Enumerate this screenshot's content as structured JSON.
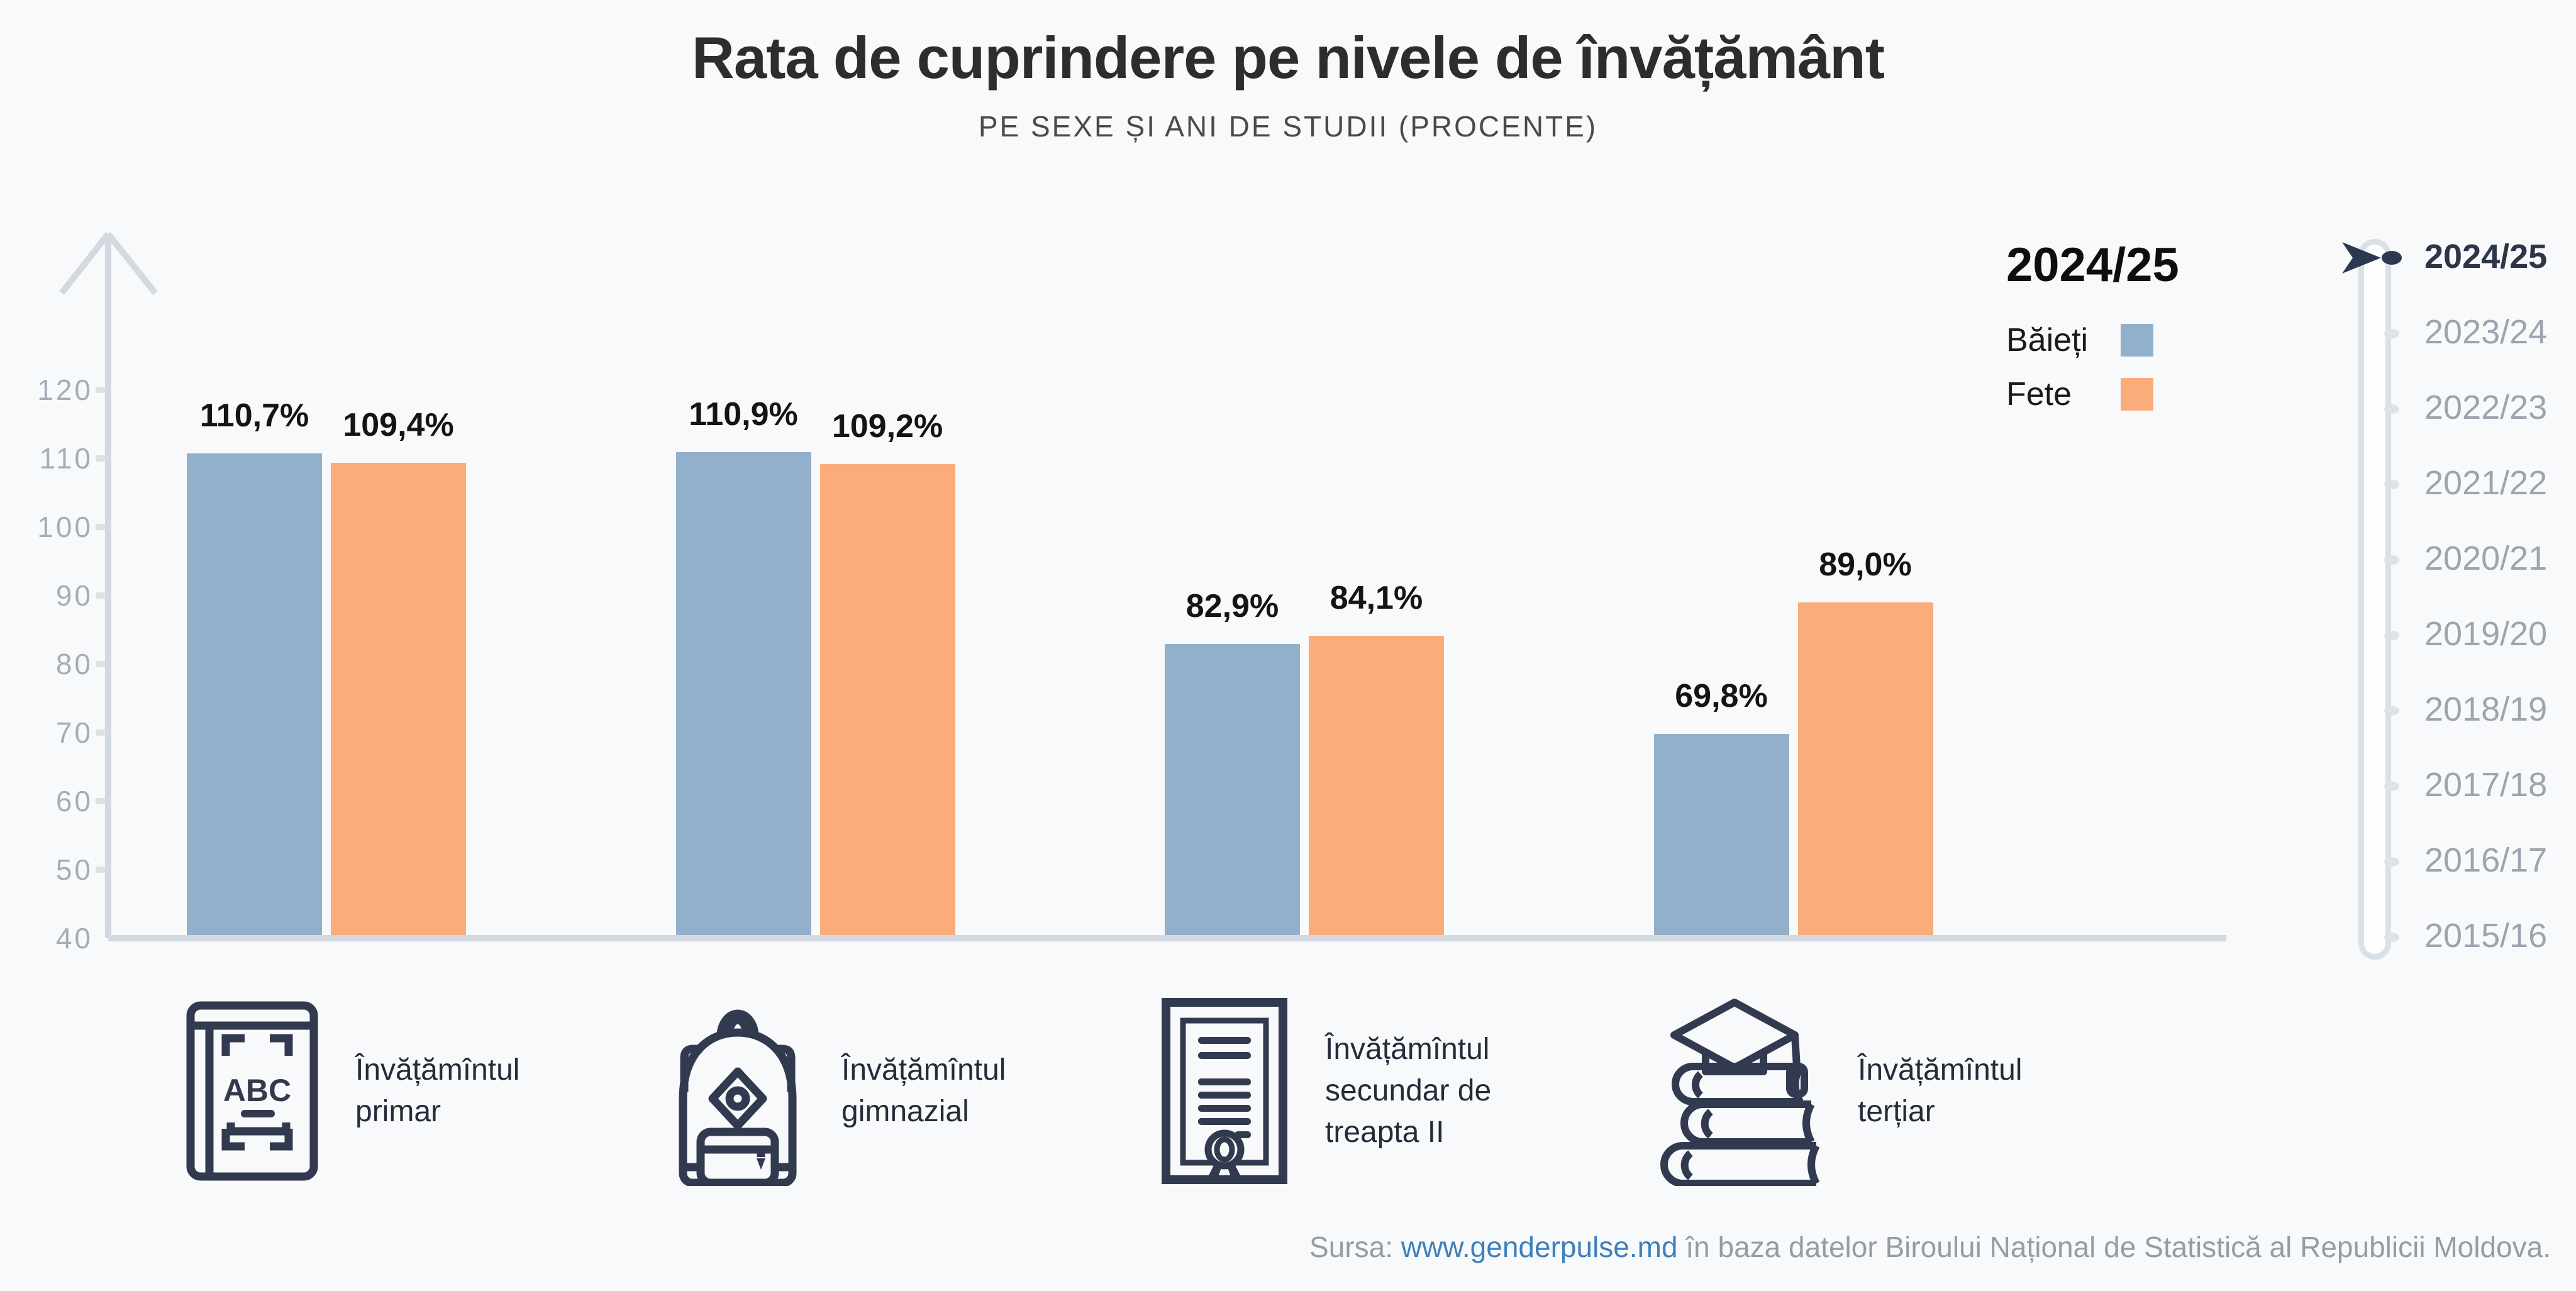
{
  "title": "Rata de cuprindere pe nivele de învățământ",
  "subtitle": "PE SEXE ȘI ANI DE STUDII (PROCENTE)",
  "legend": {
    "year": "2024/25",
    "items": [
      {
        "label": "Băieți",
        "color": "#93B0CB"
      },
      {
        "label": "Fete",
        "color": "#FBAC7B"
      }
    ]
  },
  "timeline": {
    "selected": "2024/25",
    "years": [
      "2024/25",
      "2023/24",
      "2022/23",
      "2021/22",
      "2020/21",
      "2019/20",
      "2018/19",
      "2017/18",
      "2016/17",
      "2015/16"
    ]
  },
  "chart_data": {
    "type": "bar",
    "categories": [
      "Învățămîntul\nprimar",
      "Învățămîntul\ngimnazial",
      "Învățămîntul\nsecundar de\ntreapta II",
      "Învățămîntul\nterțiar"
    ],
    "category_icons": [
      "abc-book-icon",
      "backpack-icon",
      "diploma-icon",
      "graduation-books-icon"
    ],
    "series": [
      {
        "name": "Băieți",
        "color": "#93B0CB",
        "values": [
          110.7,
          110.9,
          82.9,
          69.8
        ],
        "labels": [
          "110,7%",
          "110,9%",
          "82,9%",
          "69,8%"
        ]
      },
      {
        "name": "Fete",
        "color": "#FBAC7B",
        "values": [
          109.4,
          109.2,
          84.1,
          89.0
        ],
        "labels": [
          "109,4%",
          "109,2%",
          "84,1%",
          "89,0%"
        ]
      }
    ],
    "title": "Rata de cuprindere pe nivele de învățământ",
    "xlabel": "",
    "ylabel": "",
    "ylim": [
      40,
      130
    ],
    "yticks": [
      40,
      50,
      60,
      70,
      80,
      90,
      100,
      110,
      120
    ],
    "grid": false,
    "legend_position": "top-right",
    "unit": "%"
  },
  "source": {
    "prefix": "Sursa: ",
    "link": "www.genderpulse.md",
    "suffix": " în baza datelor Biroului Național de Statistică al Republicii Moldova."
  },
  "colors": {
    "baieti": "#93B0CB",
    "fete": "#FBAC7B",
    "background": "#F8F9FA",
    "axis": "#D2D9E0",
    "tick_dash": "#DCE1E6",
    "tick_label": "#A5ADB6",
    "value_label": "#141414",
    "title": "#2D2D2D",
    "subtitle": "#4A4A4A",
    "icon": "#323A4F",
    "selected_year": "#2B3648",
    "year": "#9CA4AF",
    "track": "#DAE0E7",
    "dot": "#DCE2E8",
    "cursor": "#2B3850",
    "link": "#3E80BC",
    "source_text": "#949CA6"
  }
}
